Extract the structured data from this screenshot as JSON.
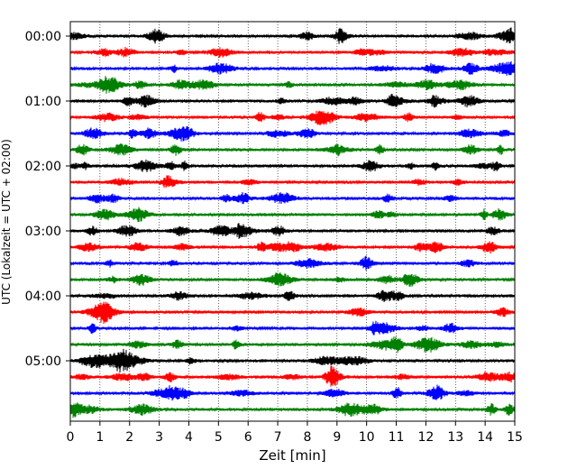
{
  "chart_data": {
    "type": "line",
    "xlabel": "Zeit  [min]",
    "ylabel": "UTC (Lokalzeit = UTC + 02:00)",
    "xlim": [
      0,
      15
    ],
    "x_ticks": [
      "0",
      "1",
      "2",
      "3",
      "4",
      "5",
      "6",
      "7",
      "8",
      "9",
      "10",
      "11",
      "12",
      "13",
      "14",
      "15"
    ],
    "y_tick_labels": [
      "00:00",
      "01:00",
      "02:00",
      "03:00",
      "04:00",
      "05:00"
    ],
    "trace_count": 24,
    "trace_colors": [
      "#000000",
      "#ff0000",
      "#0000ff",
      "#008000"
    ],
    "grid": "vertical dotted at each minute"
  }
}
